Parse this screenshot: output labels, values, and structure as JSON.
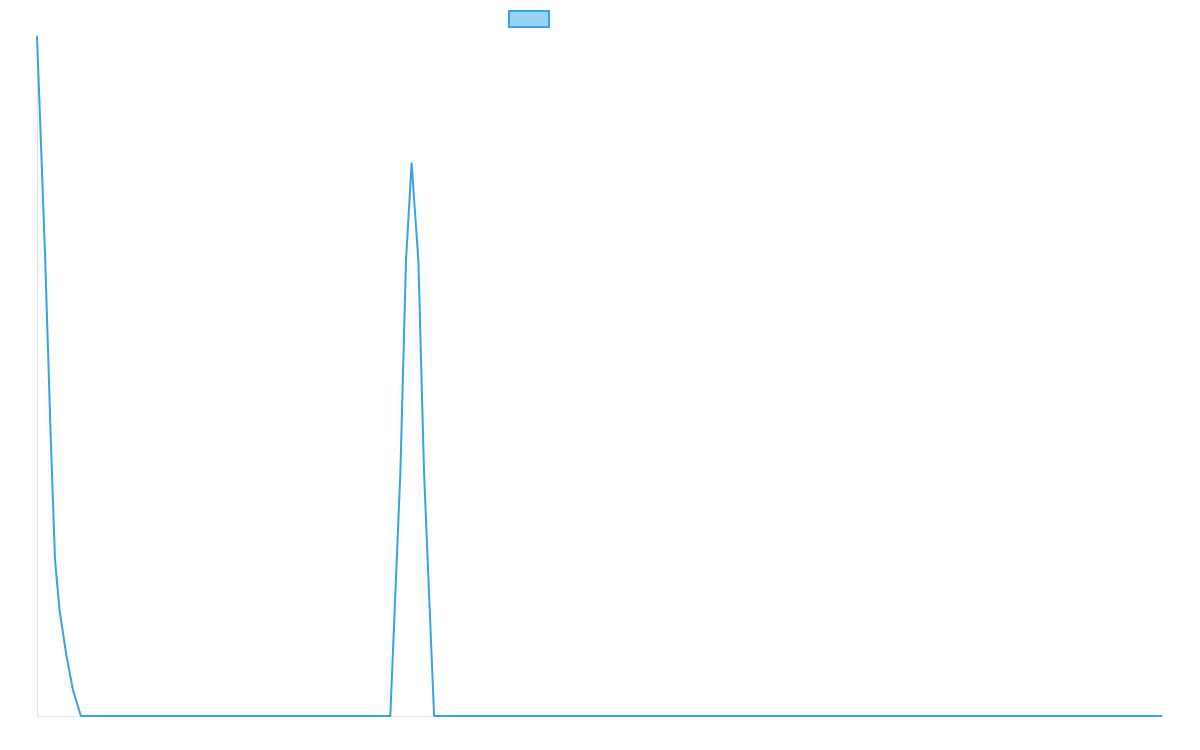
{
  "chart_data": {
    "type": "line",
    "title": "",
    "xlabel": "",
    "ylabel": "",
    "xlim": [
      0,
      100
    ],
    "ylim": [
      0,
      100
    ],
    "grid": false,
    "legend": "top-center",
    "series": [
      {
        "name": "",
        "color": "#36a2eb",
        "fill": "#9ad0f5",
        "x": [
          0,
          0.7,
          1.2,
          1.6,
          2.0,
          2.6,
          3.2,
          3.9,
          31.4,
          32.3,
          32.8,
          33.3,
          33.9,
          34.4,
          35.3,
          100
        ],
        "y": [
          100,
          68.5,
          42,
          23,
          15.6,
          9,
          3.8,
          0,
          0,
          36,
          67,
          81.3,
          67,
          36,
          0,
          0
        ]
      }
    ]
  }
}
